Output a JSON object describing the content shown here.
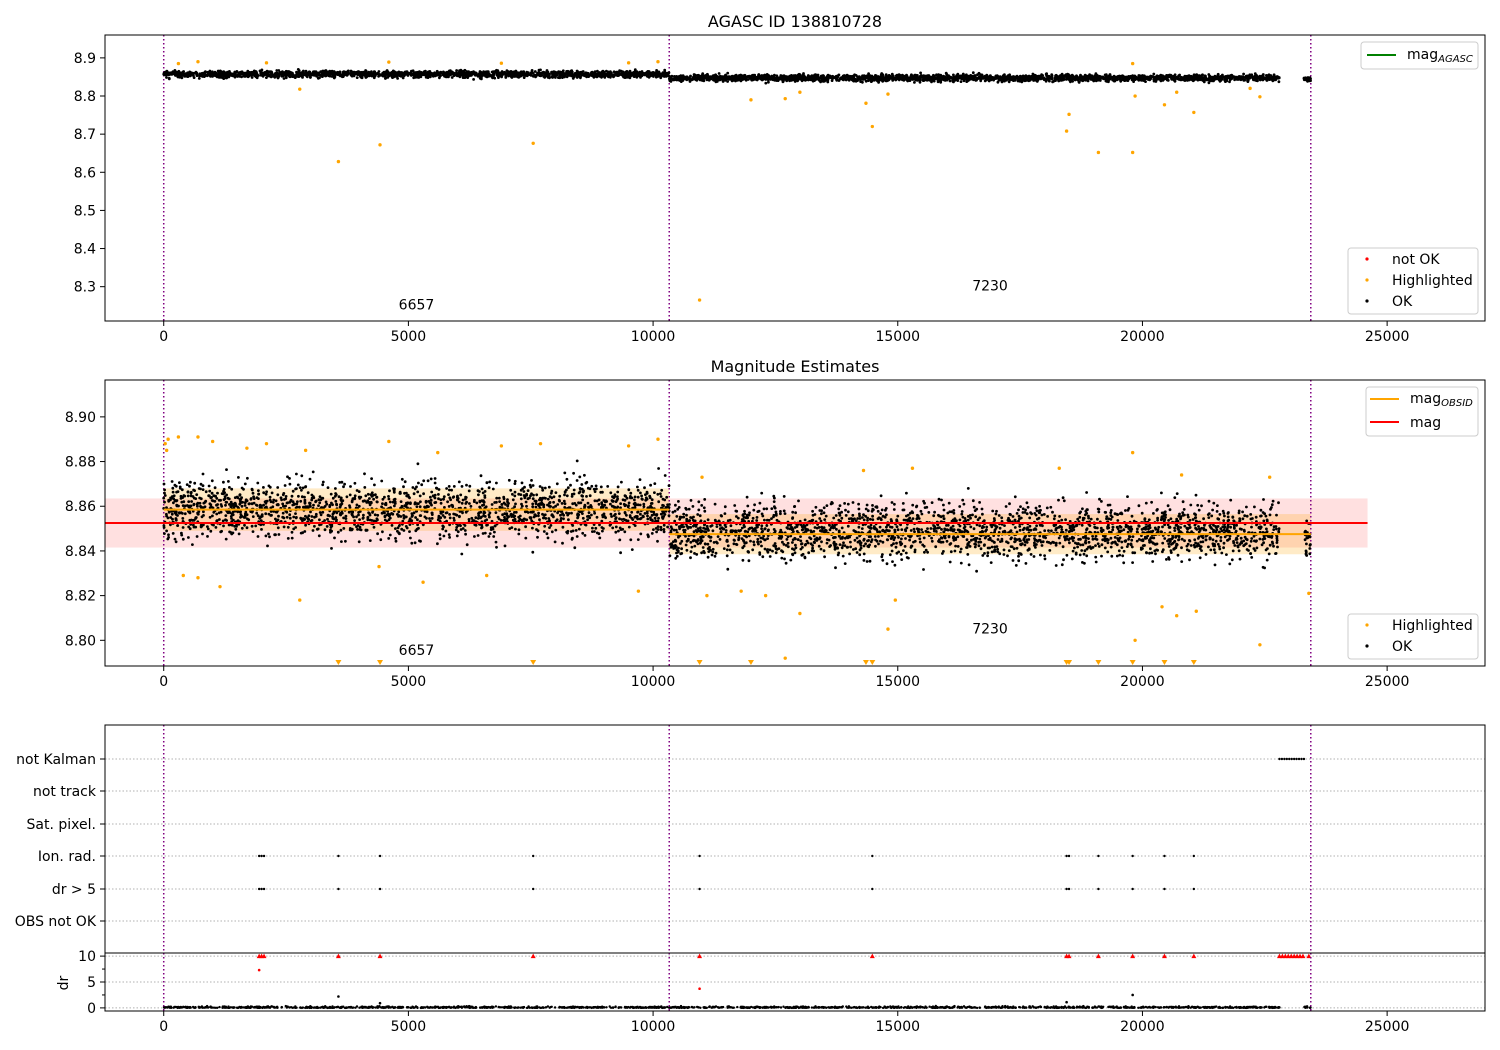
{
  "chart_data": [
    {
      "type": "scatter",
      "title": "AGASC ID 138810728",
      "xlim": [
        -1200,
        27000
      ],
      "ylim": [
        8.21,
        8.96
      ],
      "xticks": [
        0,
        5000,
        10000,
        15000,
        20000,
        25000
      ],
      "yticks": [
        8.3,
        8.4,
        8.5,
        8.6,
        8.7,
        8.8,
        8.9
      ],
      "ytick_labels": [
        "8.3",
        "8.4",
        "8.5",
        "8.6",
        "8.7",
        "8.8",
        "8.9"
      ],
      "obsid_boundaries": [
        0,
        10330,
        23440
      ],
      "obsid_labels": [
        {
          "text": "6657",
          "x": 5165,
          "y": 8.24
        },
        {
          "text": "7230",
          "x": 16885,
          "y": 8.29
        }
      ],
      "line_legend": [
        {
          "name": "mag",
          "sub": "AGASC",
          "color": "#008000"
        }
      ],
      "marker_legend": [
        {
          "name": "not OK",
          "color": "#ff0000"
        },
        {
          "name": "Highlighted",
          "color": "#ffa500"
        },
        {
          "name": "OK",
          "color": "#000000"
        }
      ],
      "ok_band": [
        {
          "x0": 0,
          "x1": 10330,
          "y0": 8.84,
          "y1": 8.875
        },
        {
          "x0": 10330,
          "x1": 22800,
          "y0": 8.83,
          "y1": 8.865
        },
        {
          "x0": 23300,
          "x1": 23440,
          "y0": 8.83,
          "y1": 8.86
        }
      ],
      "highlighted_points": [
        {
          "x": 3570,
          "y": 8.628
        },
        {
          "x": 4420,
          "y": 8.672
        },
        {
          "x": 7550,
          "y": 8.676
        },
        {
          "x": 10950,
          "y": 8.265
        },
        {
          "x": 14350,
          "y": 8.781
        },
        {
          "x": 14480,
          "y": 8.72
        },
        {
          "x": 18450,
          "y": 8.708
        },
        {
          "x": 18500,
          "y": 8.752
        },
        {
          "x": 19100,
          "y": 8.652
        },
        {
          "x": 19800,
          "y": 8.652
        },
        {
          "x": 20450,
          "y": 8.777
        },
        {
          "x": 21050,
          "y": 8.757
        },
        {
          "x": 19850,
          "y": 8.8
        },
        {
          "x": 12000,
          "y": 8.79
        },
        {
          "x": 12700,
          "y": 8.793
        },
        {
          "x": 22400,
          "y": 8.798
        },
        {
          "x": 2780,
          "y": 8.818
        },
        {
          "x": 13000,
          "y": 8.81
        },
        {
          "x": 14800,
          "y": 8.805
        },
        {
          "x": 20700,
          "y": 8.81
        },
        {
          "x": 22200,
          "y": 8.82
        },
        {
          "x": 300,
          "y": 8.885
        },
        {
          "x": 700,
          "y": 8.89
        },
        {
          "x": 2100,
          "y": 8.887
        },
        {
          "x": 4600,
          "y": 8.889
        },
        {
          "x": 6900,
          "y": 8.886
        },
        {
          "x": 9500,
          "y": 8.887
        },
        {
          "x": 10100,
          "y": 8.89
        },
        {
          "x": 19800,
          "y": 8.885
        }
      ]
    },
    {
      "type": "scatter",
      "title": "Magnitude Estimates",
      "xlim": [
        -1200,
        27000
      ],
      "ylim": [
        8.7885,
        8.9165
      ],
      "xticks": [
        0,
        5000,
        10000,
        15000,
        20000,
        25000
      ],
      "yticks": [
        8.8,
        8.82,
        8.84,
        8.86,
        8.88,
        8.9
      ],
      "ytick_labels": [
        "8.80",
        "8.82",
        "8.84",
        "8.86",
        "8.88",
        "8.90"
      ],
      "obsid_boundaries": [
        0,
        10330,
        23440
      ],
      "obsid_labels": [
        {
          "text": "6657",
          "x": 5165,
          "y": 8.7935
        },
        {
          "text": "7230",
          "x": 16885,
          "y": 8.803
        }
      ],
      "line_legend": [
        {
          "name": "mag",
          "sub": "OBSID",
          "color": "#ffa500"
        },
        {
          "name": "mag",
          "sub": "",
          "color": "#ff0000"
        }
      ],
      "marker_legend": [
        {
          "name": "Highlighted",
          "color": "#ffa500"
        },
        {
          "name": "OK",
          "color": "#000000"
        }
      ],
      "mag_overall": {
        "value": 8.8525,
        "band": [
          8.8415,
          8.8635
        ],
        "x0": -1200,
        "x1": 24600
      },
      "mag_obsid": [
        {
          "x0": 0,
          "x1": 10330,
          "value": 8.8585,
          "band": [
            8.849,
            8.868
          ]
        },
        {
          "x0": 10330,
          "x1": 23440,
          "value": 8.8475,
          "band": [
            8.8385,
            8.8565
          ]
        }
      ],
      "ok_band": [
        {
          "x0": 0,
          "x1": 10330,
          "y0": 8.835,
          "y1": 8.882
        },
        {
          "x0": 10330,
          "x1": 22800,
          "y0": 8.826,
          "y1": 8.872
        },
        {
          "x0": 23300,
          "x1": 23440,
          "y0": 8.828,
          "y1": 8.862
        }
      ],
      "highlighted_points": [
        {
          "x": 30,
          "y": 8.888
        },
        {
          "x": 60,
          "y": 8.885
        },
        {
          "x": 90,
          "y": 8.89
        },
        {
          "x": 300,
          "y": 8.891
        },
        {
          "x": 700,
          "y": 8.891
        },
        {
          "x": 1000,
          "y": 8.889
        },
        {
          "x": 1700,
          "y": 8.886
        },
        {
          "x": 2100,
          "y": 8.888
        },
        {
          "x": 2900,
          "y": 8.885
        },
        {
          "x": 4600,
          "y": 8.889
        },
        {
          "x": 5600,
          "y": 8.884
        },
        {
          "x": 6900,
          "y": 8.887
        },
        {
          "x": 7700,
          "y": 8.888
        },
        {
          "x": 9500,
          "y": 8.887
        },
        {
          "x": 10100,
          "y": 8.89
        },
        {
          "x": 400,
          "y": 8.829
        },
        {
          "x": 700,
          "y": 8.828
        },
        {
          "x": 1150,
          "y": 8.824
        },
        {
          "x": 2780,
          "y": 8.818
        },
        {
          "x": 4400,
          "y": 8.833
        },
        {
          "x": 5300,
          "y": 8.826
        },
        {
          "x": 6600,
          "y": 8.829
        },
        {
          "x": 9700,
          "y": 8.822
        },
        {
          "x": 11100,
          "y": 8.82
        },
        {
          "x": 11800,
          "y": 8.822
        },
        {
          "x": 12300,
          "y": 8.82
        },
        {
          "x": 13000,
          "y": 8.812
        },
        {
          "x": 14800,
          "y": 8.805
        },
        {
          "x": 14950,
          "y": 8.818
        },
        {
          "x": 19850,
          "y": 8.8
        },
        {
          "x": 20400,
          "y": 8.815
        },
        {
          "x": 20700,
          "y": 8.811
        },
        {
          "x": 21100,
          "y": 8.813
        },
        {
          "x": 22400,
          "y": 8.798
        },
        {
          "x": 12700,
          "y": 8.792
        },
        {
          "x": 23400,
          "y": 8.821
        },
        {
          "x": 11000,
          "y": 8.873
        },
        {
          "x": 14300,
          "y": 8.876
        },
        {
          "x": 15300,
          "y": 8.877
        },
        {
          "x": 18300,
          "y": 8.877
        },
        {
          "x": 19800,
          "y": 8.884
        },
        {
          "x": 20800,
          "y": 8.874
        },
        {
          "x": 22600,
          "y": 8.873
        }
      ],
      "below_range_markers": [
        3570,
        4420,
        7550,
        10950,
        12000,
        14350,
        14480,
        18450,
        18500,
        19100,
        19800,
        20450,
        21050
      ]
    },
    {
      "type": "scatter",
      "title": "",
      "xlim": [
        -1200,
        27000
      ],
      "xticks": [
        0,
        5000,
        10000,
        15000,
        20000,
        25000
      ],
      "flag_rows": [
        "not Kalman",
        "not track",
        "Sat. pixel.",
        "Ion. rad.",
        "dr > 5",
        "OBS not OK"
      ],
      "obsid_boundaries": [
        0,
        10330,
        23440
      ],
      "flag_events": {
        "not Kalman": [
          22800,
          22850,
          22900,
          22950,
          23000,
          23050,
          23100,
          23150,
          23200,
          23250,
          23300
        ],
        "Ion. rad.": [
          1950,
          2000,
          2050,
          3570,
          4420,
          7550,
          10950,
          14480,
          18450,
          18500,
          19100,
          19800,
          20450,
          21050
        ],
        "dr > 5": [
          1950,
          2000,
          2050,
          3570,
          4420,
          7550,
          10950,
          14480,
          18450,
          18500,
          19100,
          19800,
          20450,
          21050
        ]
      },
      "dr": {
        "ylabel": "dr",
        "yticks": [
          0,
          5,
          10
        ],
        "ytick_labels": [
          "0",
          "5",
          "10"
        ],
        "ylim": [
          -0.6,
          10.6
        ],
        "capped_points": [
          1950,
          2000,
          2050,
          3570,
          4420,
          7550,
          10950,
          14480,
          18450,
          18500,
          19100,
          19800,
          20450,
          21050,
          22800,
          22860,
          22920,
          22980,
          23040,
          23100,
          23160,
          23220,
          23280,
          23400
        ],
        "red_points": [
          {
            "x": 1950,
            "y": 7.3
          },
          {
            "x": 10950,
            "y": 3.7
          }
        ],
        "black_points": [
          {
            "x": 3570,
            "y": 2.2
          },
          {
            "x": 19800,
            "y": 2.5
          },
          {
            "x": 18450,
            "y": 1.1
          },
          {
            "x": 4420,
            "y": 0.9
          }
        ]
      }
    }
  ]
}
